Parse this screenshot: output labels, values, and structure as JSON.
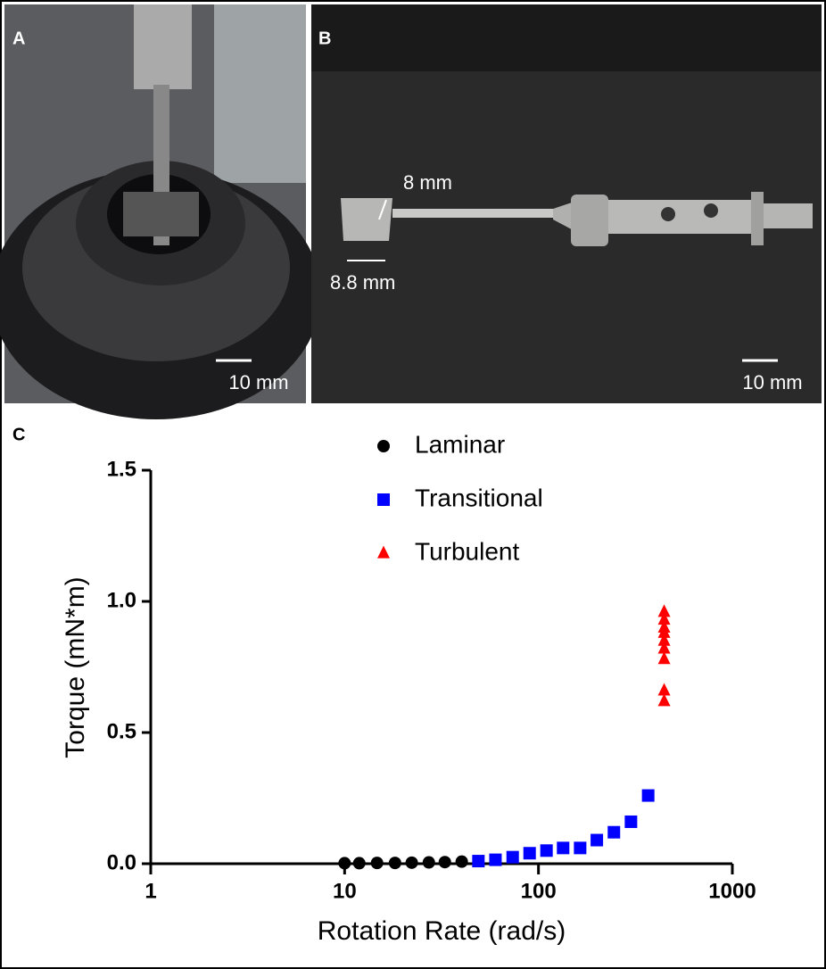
{
  "panels": {
    "A": {
      "label": "A",
      "scale": "10 mm"
    },
    "B": {
      "label": "B",
      "width_label": "8 mm",
      "height_label": "8.8 mm",
      "scale": "10 mm"
    }
  },
  "chart_data": {
    "type": "scatter",
    "panel_label": "C",
    "x_label": "Rotation Rate (rad/s)",
    "y_label": "Torque (mN*m)",
    "xscale": "log",
    "xlim": [
      1,
      1000
    ],
    "xticks": [
      1,
      10,
      100,
      1000
    ],
    "ylim": [
      0,
      1.5
    ],
    "yticks": [
      {
        "value": 0,
        "label": "0.0"
      },
      {
        "value": 0.5,
        "label": "0.5"
      },
      {
        "value": 1,
        "label": "1.0"
      },
      {
        "value": 1.5,
        "label": "1.5"
      }
    ],
    "legend": "top",
    "series": [
      {
        "name": "Laminar",
        "color": "#000000",
        "marker": "circle",
        "x": [
          10,
          11.9,
          14.7,
          18.2,
          22.2,
          27.2,
          32.9,
          40.2
        ],
        "values": [
          0.002,
          0.002,
          0.003,
          0.003,
          0.004,
          0.005,
          0.006,
          0.008
        ]
      },
      {
        "name": "Transitional",
        "color": "#0000ff",
        "marker": "square",
        "x": [
          49,
          60,
          73.6,
          90,
          110,
          134,
          164,
          200,
          245,
          300,
          368
        ],
        "values": [
          0.01,
          0.015,
          0.025,
          0.04,
          0.05,
          0.06,
          0.06,
          0.09,
          0.12,
          0.16,
          0.26
        ]
      },
      {
        "name": "Turbulent",
        "color": "#ff0000",
        "marker": "triangle",
        "x": [
          445,
          445,
          445,
          445,
          445,
          445,
          445,
          445,
          445
        ],
        "values": [
          0.62,
          0.66,
          0.78,
          0.82,
          0.85,
          0.88,
          0.9,
          0.93,
          0.96
        ]
      }
    ]
  }
}
